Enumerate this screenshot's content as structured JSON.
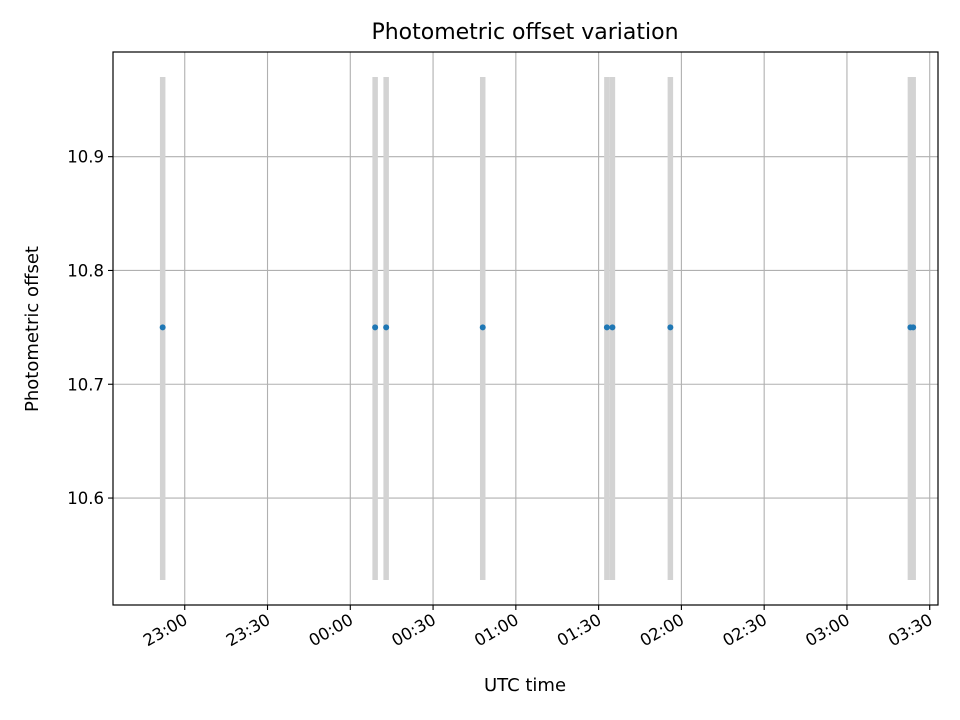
{
  "chart_data": {
    "type": "scatter",
    "title": "Photometric offset variation",
    "xlabel": "UTC time",
    "ylabel": "Photometric offset",
    "x_ticks": [
      "23:00",
      "23:30",
      "00:00",
      "00:30",
      "01:00",
      "01:30",
      "02:00",
      "02:30",
      "03:00",
      "03:30"
    ],
    "y_ticks": [
      "10.6",
      "10.7",
      "10.8",
      "10.9"
    ],
    "xlim": [
      "22:34",
      "03:33"
    ],
    "ylim": [
      10.506,
      10.992
    ],
    "grid": true,
    "series": [
      {
        "x": [
          "22:52",
          "00:09",
          "00:13",
          "00:48",
          "01:33",
          "01:35",
          "01:56",
          "03:23",
          "03:24"
        ],
        "y": [
          10.75,
          10.75,
          10.75,
          10.75,
          10.75,
          10.75,
          10.75,
          10.75,
          10.75
        ],
        "color": "#1f77b4"
      }
    ],
    "bands": [
      {
        "x": "22:52",
        "y_range": [
          10.528,
          10.97
        ]
      },
      {
        "x": "00:09",
        "y_range": [
          10.528,
          10.97
        ]
      },
      {
        "x": "00:13",
        "y_range": [
          10.528,
          10.97
        ]
      },
      {
        "x": "00:48",
        "y_range": [
          10.528,
          10.97
        ]
      },
      {
        "x": "01:33",
        "y_range": [
          10.528,
          10.97
        ]
      },
      {
        "x": "01:35",
        "y_range": [
          10.528,
          10.97
        ]
      },
      {
        "x": "01:56",
        "y_range": [
          10.528,
          10.97
        ]
      },
      {
        "x": "03:23",
        "y_range": [
          10.528,
          10.97
        ]
      },
      {
        "x": "03:24",
        "y_range": [
          10.528,
          10.97
        ]
      }
    ],
    "band_color": "#d3d3d3",
    "grid_color": "#b0b0b0"
  }
}
